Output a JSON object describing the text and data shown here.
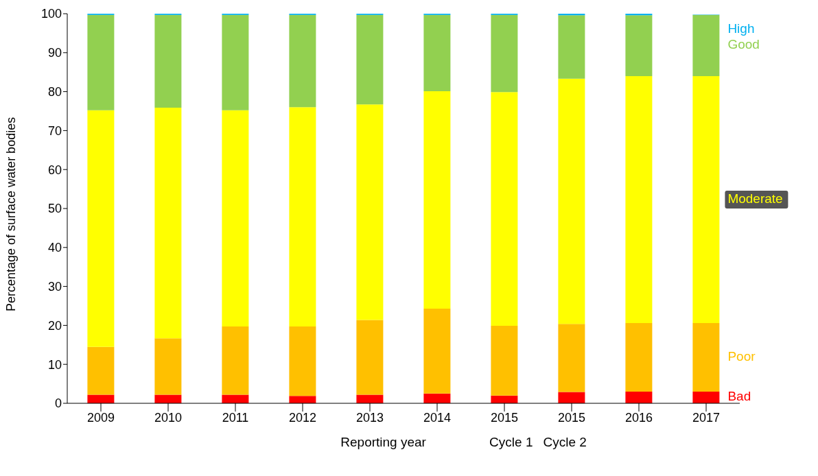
{
  "chart_data": {
    "type": "bar",
    "stacked": true,
    "ylabel": "Percentage of surface water bodies",
    "xlabel": "Reporting year",
    "categories": [
      "2009",
      "2010",
      "2011",
      "2012",
      "2013",
      "2014",
      "2015",
      "2015",
      "2016",
      "2017"
    ],
    "series": [
      {
        "name": "Bad",
        "color": "#ff0000",
        "values": [
          2.2,
          2.2,
          2.2,
          1.9,
          2.2,
          2.5,
          2.0,
          2.9,
          3.0,
          3.0
        ]
      },
      {
        "name": "Poor",
        "color": "#ffc000",
        "values": [
          12.3,
          14.5,
          17.5,
          17.8,
          19.2,
          21.8,
          17.9,
          17.5,
          17.6,
          17.6
        ]
      },
      {
        "name": "Moderate",
        "color": "#ffff00",
        "values": [
          60.7,
          59.2,
          55.5,
          56.3,
          55.3,
          55.8,
          60.0,
          62.9,
          63.4,
          63.4
        ]
      },
      {
        "name": "Good",
        "color": "#92d050",
        "values": [
          24.5,
          23.8,
          24.5,
          23.7,
          23.0,
          19.6,
          19.8,
          16.3,
          15.6,
          15.7
        ]
      },
      {
        "name": "High",
        "color": "#00b0f0",
        "values": [
          0.3,
          0.3,
          0.3,
          0.3,
          0.3,
          0.3,
          0.3,
          0.4,
          0.4,
          0.1
        ]
      }
    ],
    "ylim": [
      0,
      100
    ],
    "yticks": [
      0,
      10,
      20,
      30,
      40,
      50,
      60,
      70,
      80,
      90,
      100
    ],
    "grid": false,
    "annotations": [
      "Cycle 1",
      "Cycle 2"
    ]
  }
}
